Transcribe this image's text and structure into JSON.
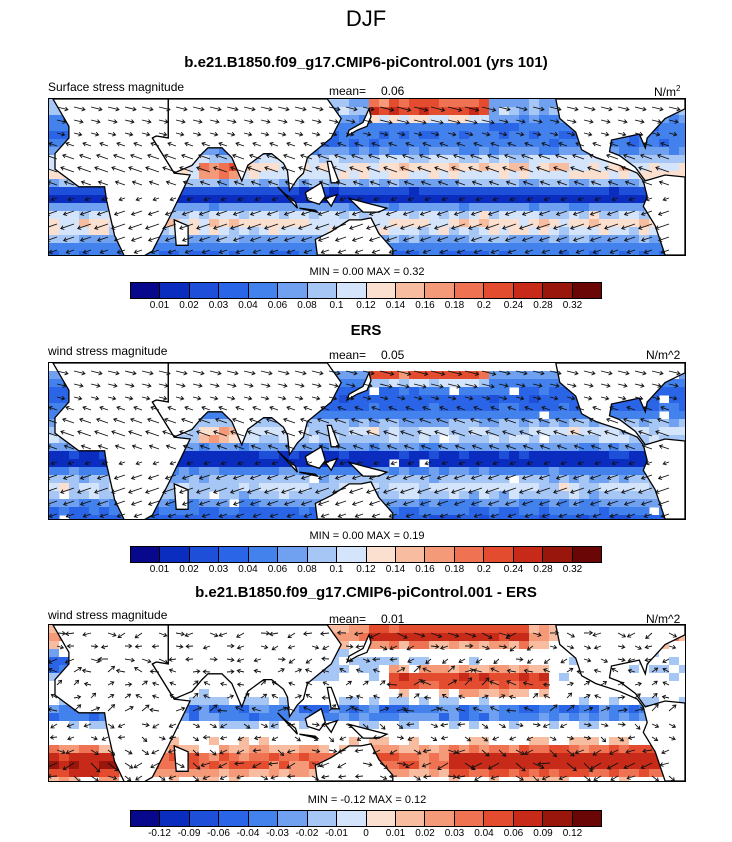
{
  "title": "DJF",
  "panels": [
    {
      "heading": "b.e21.B1850.f09_g17.CMIP6-piControl.001 (yrs 101)",
      "left_label": "Surface stress magnitude",
      "mean_label": "mean=",
      "mean_value": "0.06",
      "units": "N/m",
      "units_sup": "2",
      "minmax_text": "MIN =   0.00 MAX =   0.32",
      "tick_labels": [
        "0.01",
        "0.02",
        "0.03",
        "0.04",
        "0.06",
        "0.08",
        "0.1",
        "0.12",
        "0.14",
        "0.16",
        "0.18",
        "0.2",
        "0.24",
        "0.28",
        "0.32"
      ],
      "scheme": "abs",
      "mask": "full"
    },
    {
      "heading": "ERS",
      "left_label": "wind stress magnitude",
      "mean_label": "mean=",
      "mean_value": "0.05",
      "units": "N/m^2",
      "units_sup": "",
      "minmax_text": "MIN =   0.00 MAX =   0.19",
      "tick_labels": [
        "0.01",
        "0.02",
        "0.03",
        "0.04",
        "0.06",
        "0.08",
        "0.1",
        "0.12",
        "0.14",
        "0.16",
        "0.18",
        "0.2",
        "0.24",
        "0.28",
        "0.32"
      ],
      "scheme": "abs",
      "mask": "ers"
    },
    {
      "heading": "b.e21.B1850.f09_g17.CMIP6-piControl.001 - ERS",
      "left_label": "wind stress magnitude",
      "mean_label": "mean=",
      "mean_value": "0.01",
      "units": "N/m^2",
      "units_sup": "",
      "minmax_text": "MIN =  -0.12 MAX =   0.12",
      "tick_labels": [
        "-0.12",
        "-0.09",
        "-0.06",
        "-0.04",
        "-0.03",
        "-0.02",
        "-0.01",
        "0",
        "0.01",
        "0.02",
        "0.03",
        "0.04",
        "0.06",
        "0.09",
        "0.12"
      ],
      "scheme": "diff",
      "mask": "full"
    }
  ],
  "palette": [
    "#08088c",
    "#0a2dc0",
    "#1e4fd8",
    "#2a65e8",
    "#4382ec",
    "#6fa1f0",
    "#a6c6f5",
    "#d4e4fa",
    "#fbe0d0",
    "#f8bda0",
    "#f59a78",
    "#ef7352",
    "#e44c30",
    "#c72a18",
    "#98160c",
    "#6a0606"
  ]
}
